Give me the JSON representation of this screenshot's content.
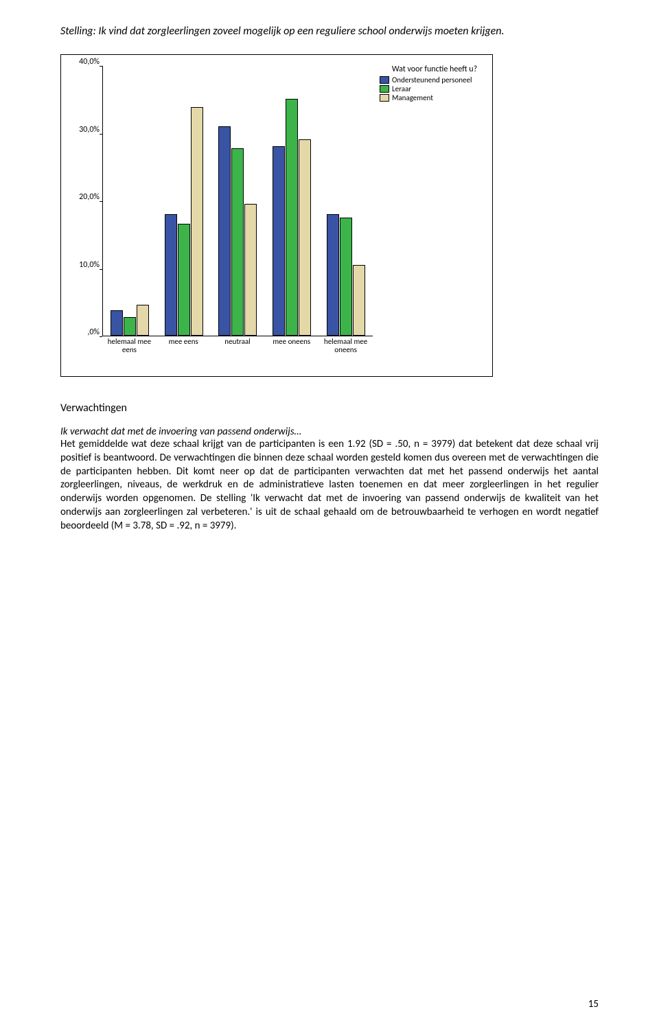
{
  "title": "Stelling: Ik vind dat zorgleerlingen zoveel mogelijk op een reguliere school onderwijs moeten krijgen.",
  "chart": {
    "type": "bar",
    "ylim": [
      0,
      40
    ],
    "ytick_step": 10,
    "y_ticks": [
      0,
      10,
      20,
      30,
      40
    ],
    "y_tick_labels": [
      ",0%",
      "10,0%",
      "20,0%",
      "30,0%",
      "40,0%"
    ],
    "categories": [
      "helemaal mee\neens",
      "mee eens",
      "neutraal",
      "mee oneens",
      "helemaal mee\noneens"
    ],
    "series": [
      {
        "name": "Ondersteunend personeel",
        "color": "#3954a4",
        "values": [
          3.8,
          18.0,
          31.0,
          28.0,
          18.0
        ]
      },
      {
        "name": "Leraar",
        "color": "#3cb44a",
        "values": [
          2.7,
          16.5,
          27.7,
          35.0,
          17.5
        ]
      },
      {
        "name": "Management",
        "color": "#e4d8a8",
        "values": [
          4.6,
          33.8,
          19.5,
          29.0,
          10.5
        ]
      }
    ],
    "legend_title": "Wat voor functie heeft u?",
    "bar_border": "#000000",
    "background_color": "#ffffff",
    "axis_color": "#000000",
    "label_fontsize": 12
  },
  "section_heading": "Verwachtingen",
  "subhead_italic": "Ik verwacht dat met de invoering van passend onderwijs…",
  "body_text": "Het gemiddelde wat deze schaal krijgt van de participanten is een 1.92 (SD = .50, n = 3979) dat betekent dat deze schaal vrij positief is beantwoord. De verwachtingen die binnen deze schaal worden gesteld komen dus overeen met de verwachtingen die de participanten hebben. Dit komt neer op dat de participanten verwachten dat met het passend onderwijs het aantal zorgleerlingen, niveaus, de werkdruk en de administratieve lasten toenemen en dat meer zorgleerlingen in het regulier onderwijs worden opgenomen. De stelling 'Ik verwacht dat met de invoering van passend onderwijs de kwaliteit van het onderwijs aan zorgleerlingen zal verbeteren.' is uit de schaal gehaald om de betrouwbaarheid te verhogen en wordt negatief beoordeeld (M = 3.78, SD = .92, n = 3979).",
  "page_number": "15"
}
